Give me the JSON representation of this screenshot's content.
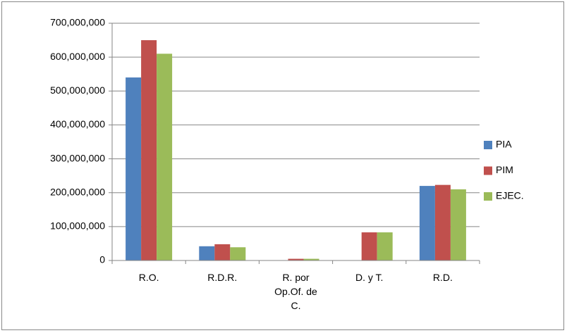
{
  "chart_data": {
    "type": "bar",
    "categories": [
      "R.O.",
      "R.D.R.",
      "R. por Op.Of. de C.",
      "D. y T.",
      "R.D."
    ],
    "series": [
      {
        "name": "PIA",
        "color": "#4f81bd",
        "values": [
          540000000,
          42000000,
          0,
          0,
          220000000
        ]
      },
      {
        "name": "PIM",
        "color": "#c0504d",
        "values": [
          650000000,
          48000000,
          5000000,
          83000000,
          223000000
        ]
      },
      {
        "name": "EJEC.",
        "color": "#9bbb59",
        "values": [
          610000000,
          39000000,
          5000000,
          83000000,
          210000000
        ]
      }
    ],
    "ylim": [
      0,
      700000000
    ],
    "yticks": [
      0,
      {
        "value": 100000000,
        "label": "100,000,000"
      },
      {
        "value": 200000000,
        "label": "200,000,000"
      },
      {
        "value": 300000000,
        "label": "300,000,000"
      },
      {
        "value": 400000000,
        "label": "400,000,000"
      },
      {
        "value": 500000000,
        "label": "500,000,000"
      },
      {
        "value": 600000000,
        "label": "600,000,000"
      },
      {
        "value": 700000000,
        "label": "700,000,000"
      }
    ],
    "grid": true,
    "legend": "right"
  }
}
